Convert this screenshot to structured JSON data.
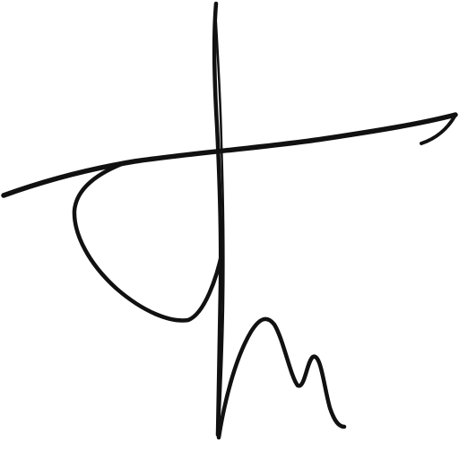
{
  "background_color": "#ffffff",
  "ink_color": "#111111",
  "strokes": [
    {
      "name": "vertical-stroke"
    },
    {
      "name": "horizontal-stroke"
    },
    {
      "name": "arrow-hook-stroke"
    },
    {
      "name": "loop-stroke"
    },
    {
      "name": "wave-stroke"
    }
  ]
}
